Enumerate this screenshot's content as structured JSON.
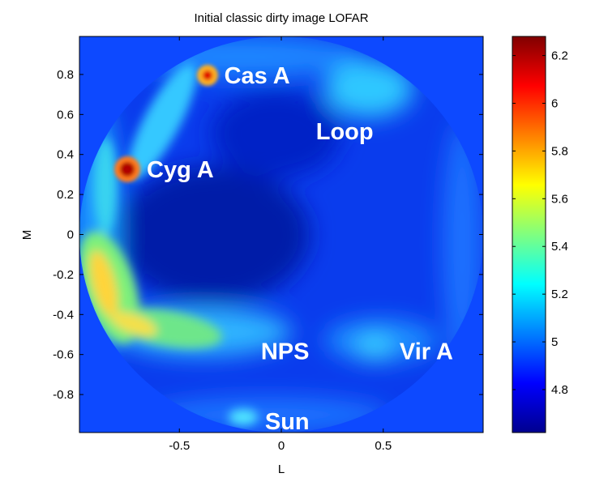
{
  "chart_data": {
    "type": "heatmap",
    "title": "Initial classic dirty image LOFAR",
    "xlabel": "L",
    "ylabel": "M",
    "xlim": [
      -0.99,
      0.99
    ],
    "ylim": [
      -0.99,
      0.99
    ],
    "x_ticks": [
      -0.5,
      0,
      0.5
    ],
    "x_tick_labels": [
      "-0.5",
      "0",
      "0.5"
    ],
    "y_ticks": [
      0.8,
      0.6,
      0.4,
      0.2,
      0,
      -0.2,
      -0.4,
      -0.6,
      -0.8
    ],
    "y_tick_labels": [
      "0.8",
      "0.6",
      "0.4",
      "0.2",
      "0",
      "-0.2",
      "-0.4",
      "-0.6",
      "-0.8"
    ],
    "colorbar": {
      "min": 4.62,
      "max": 6.28,
      "ticks": [
        6.2,
        6,
        5.8,
        5.6,
        5.4,
        5.2,
        5,
        4.8
      ],
      "tick_labels": [
        "6.2",
        "6",
        "5.8",
        "5.6",
        "5.4",
        "5.2",
        "5",
        "4.8"
      ],
      "colormap": "jet"
    },
    "background_value": 4.92,
    "annotations": [
      {
        "text": "Cas A",
        "l": -0.28,
        "m": 0.8
      },
      {
        "text": "Loop",
        "l": 0.17,
        "m": 0.52
      },
      {
        "text": "Cyg A",
        "l": -0.66,
        "m": 0.33
      },
      {
        "text": "NPS",
        "l": -0.1,
        "m": -0.58
      },
      {
        "text": "Vir A",
        "l": 0.58,
        "m": -0.58
      },
      {
        "text": "Sun",
        "l": -0.08,
        "m": -0.93
      }
    ],
    "sources": [
      {
        "name": "Cas A",
        "l": -0.36,
        "m": 0.8,
        "value": 6.25
      },
      {
        "name": "Cyg A",
        "l": -0.75,
        "m": 0.33,
        "value": 6.28
      }
    ]
  }
}
